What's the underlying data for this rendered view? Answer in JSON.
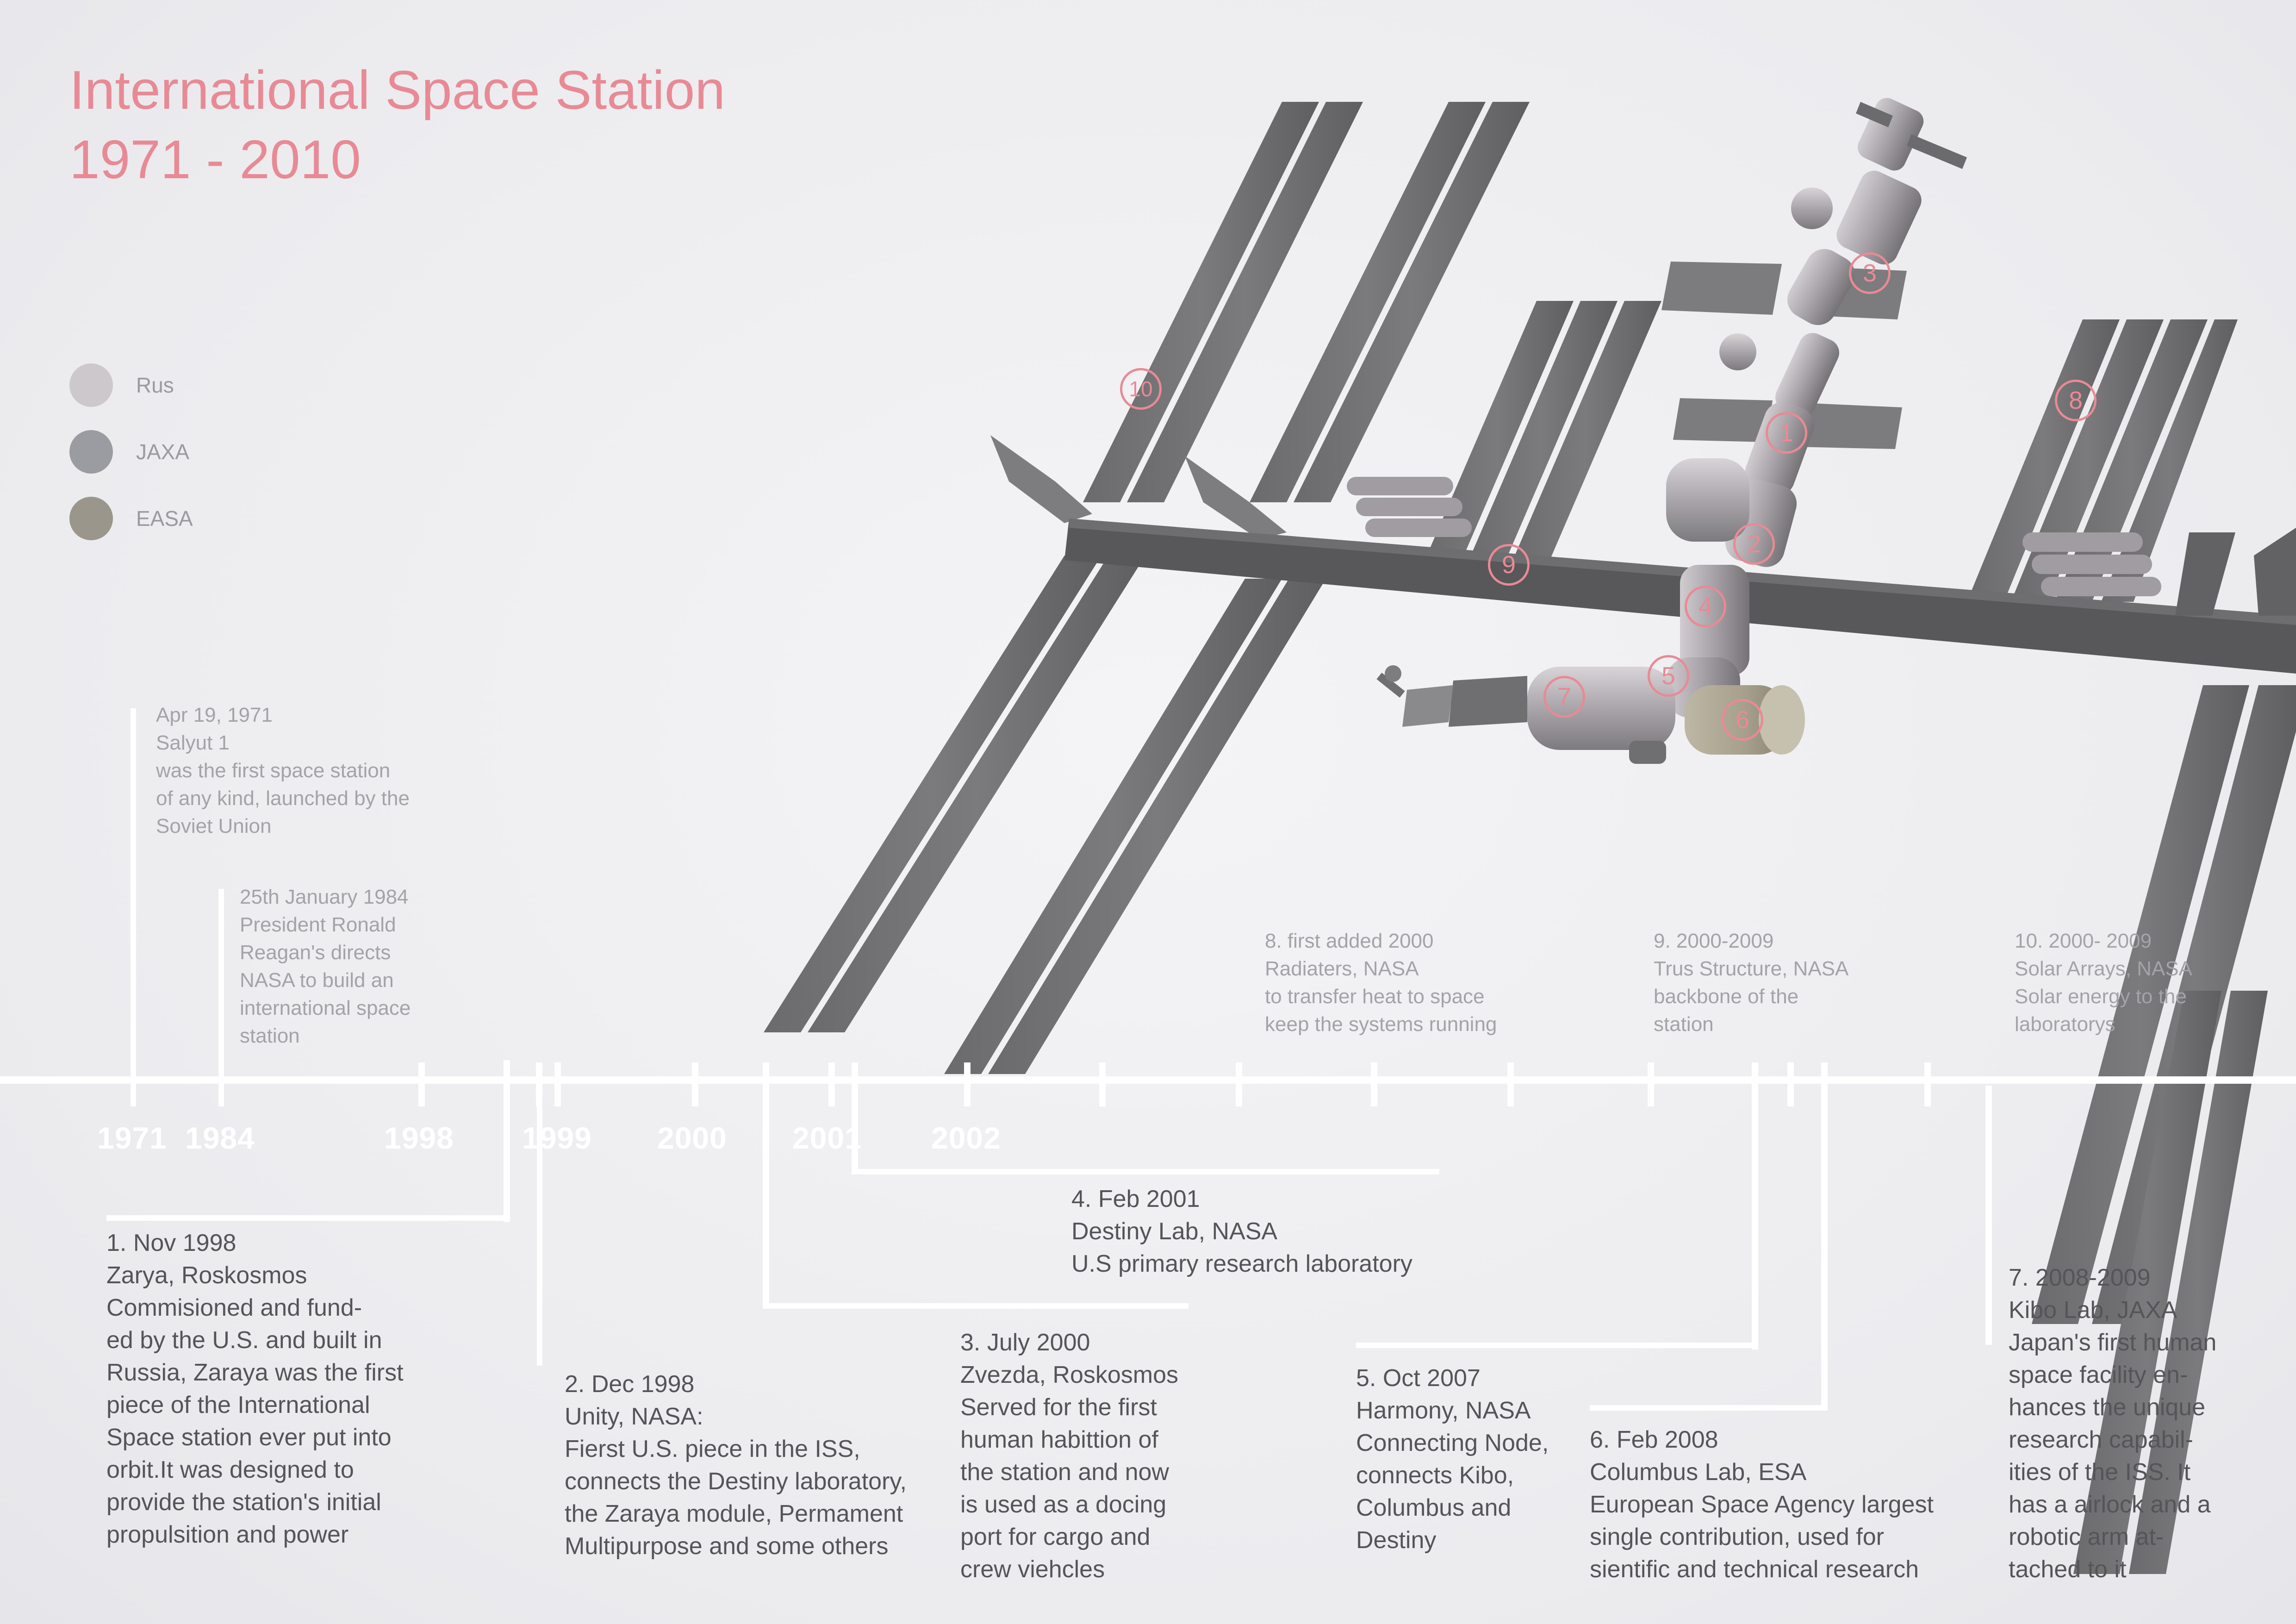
{
  "title": {
    "line1": "International Space Station",
    "line2": "1971 - 2010"
  },
  "legend": [
    {
      "label": "Rus",
      "color": "#cdc8cc"
    },
    {
      "label": "JAXA",
      "color": "#9a9ca1"
    },
    {
      "label": "EASA",
      "color": "#9a968b"
    }
  ],
  "timeline_years": [
    "1971",
    "1984",
    "1998",
    "1999",
    "2000",
    "2001",
    "2002"
  ],
  "diagram_markers": [
    "1",
    "2",
    "3",
    "4",
    "5",
    "6",
    "7",
    "8",
    "9",
    "10"
  ],
  "notes": {
    "salyut": "Apr 19, 1971\nSalyut 1\nwas the first space station\nof any kind, launched by the\nSoviet Union",
    "reagan": "25th January 1984\nPresident Ronald\nReagan's directs\nNASA to build an\ninternational space\nstation",
    "radiators": "8. first added 2000\nRadiaters, NASA\nto transfer heat to space\nkeep the systems running",
    "truss": "9. 2000-2009\nTrus Structure, NASA\nbackbone of the\nstation",
    "solar": "10. 2000- 2009\nSolar Arrays, NASA\nSolar energy to the\nlaboratorys",
    "zarya": "1. Nov 1998\nZarya, Roskosmos\nCommisioned and fund-\ned by the U.S. and built in\nRussia, Zaraya was the first\npiece of the International\nSpace station ever put into\norbit.It was designed to\nprovide the station's initial\npropulsition and power",
    "unity": "2. Dec 1998\nUnity, NASA:\nFierst U.S.  piece in the ISS,\nconnects the Destiny laboratory,\nthe Zaraya module, Permament\nMultipurpose and some others",
    "zvezda": "3. July 2000\nZvezda, Roskosmos\nServed for the first\nhuman habittion of\nthe station and now\nis used as a docing\nport for cargo and\ncrew viehcles",
    "destiny": "4. Feb 2001\nDestiny Lab, NASA\nU.S primary research laboratory",
    "harmony": "5. Oct  2007\nHarmony, NASA\nConnecting Node,\nconnects Kibo,\nColumbus and\nDestiny",
    "columbus": "6. Feb 2008\nColumbus Lab, ESA\nEuropean Space Agency largest\nsingle contribution, used for\nsientific and technical research",
    "kibo": "7.  2008-2009\nKibo Lab, JAXA\nJapan's first human\nspace facility en-\nhances the unique\nresearch capabil-\nities of the ISS. It\nhas a airlock and a\nrobotic arm at-\ntached to it"
  }
}
